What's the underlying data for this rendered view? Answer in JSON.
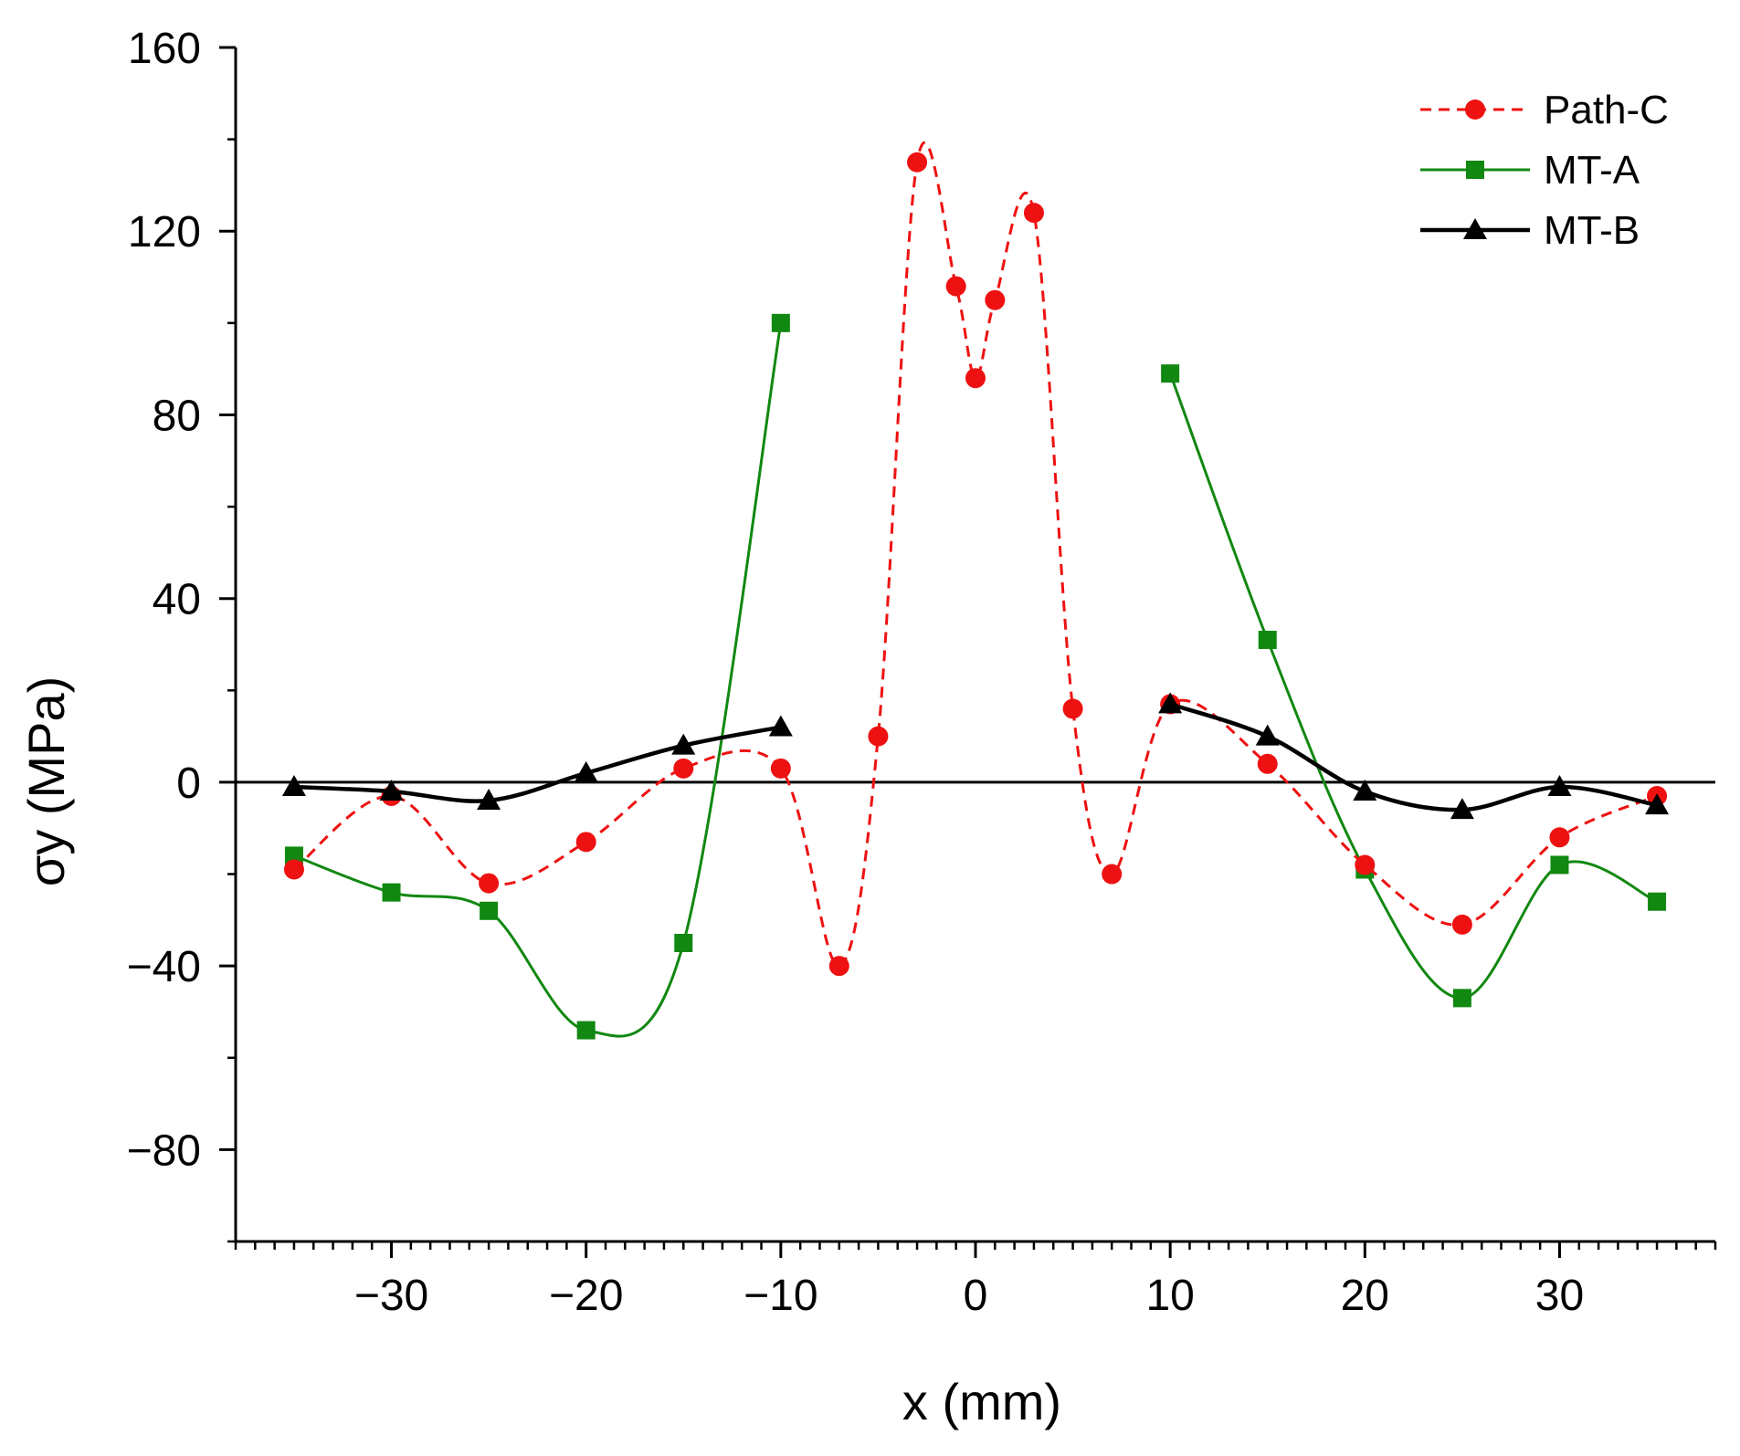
{
  "chart_data": {
    "type": "line",
    "xlabel": "x (mm)",
    "ylabel": "σy (MPa)",
    "xlim": [
      -38,
      38
    ],
    "ylim": [
      -100,
      160
    ],
    "xticks": [
      -30,
      -20,
      -10,
      0,
      10,
      20,
      30
    ],
    "xtick_labels": [
      "−30",
      "−20",
      "−10",
      "0",
      "10",
      "20",
      "30"
    ],
    "yticks": [
      -80,
      -40,
      0,
      40,
      80,
      120,
      160
    ],
    "ytick_labels": [
      "−80",
      "−40",
      "0",
      "40",
      "80",
      "120",
      "160"
    ],
    "x_minor_step": 1,
    "y_minor_step": 20,
    "zero_line": true,
    "grid": false,
    "legend_position": "top-right",
    "series": [
      {
        "name": "Path-C",
        "color": "#ee1111",
        "marker": "circle",
        "line_style": "dashed",
        "segments": [
          [
            [
              -35,
              -19
            ],
            [
              -30,
              -3
            ],
            [
              -25,
              -22
            ],
            [
              -20,
              -13
            ],
            [
              -15,
              3
            ],
            [
              -10,
              3
            ],
            [
              -7,
              -40
            ],
            [
              -5,
              10
            ],
            [
              -3,
              135
            ],
            [
              -1,
              108
            ],
            [
              0,
              88
            ],
            [
              1,
              105
            ],
            [
              3,
              124
            ],
            [
              5,
              16
            ],
            [
              7,
              -20
            ],
            [
              10,
              17
            ],
            [
              15,
              4
            ],
            [
              20,
              -18
            ],
            [
              25,
              -31
            ],
            [
              30,
              -12
            ],
            [
              35,
              -3
            ]
          ]
        ]
      },
      {
        "name": "MT-A",
        "color": "#118811",
        "marker": "square",
        "line_style": "solid",
        "segments": [
          [
            [
              -35,
              -16
            ],
            [
              -30,
              -24
            ],
            [
              -25,
              -28
            ],
            [
              -20,
              -54
            ],
            [
              -15,
              -35
            ],
            [
              -10,
              100
            ]
          ],
          [
            [
              10,
              89
            ],
            [
              15,
              31
            ],
            [
              20,
              -19
            ],
            [
              25,
              -47
            ],
            [
              30,
              -18
            ],
            [
              35,
              -26
            ]
          ]
        ]
      },
      {
        "name": "MT-B",
        "color": "#000000",
        "marker": "triangle",
        "line_style": "solid",
        "segments": [
          [
            [
              -35,
              -1
            ],
            [
              -30,
              -2
            ],
            [
              -25,
              -4
            ],
            [
              -20,
              2
            ],
            [
              -15,
              8
            ],
            [
              -10,
              12
            ]
          ],
          [
            [
              10,
              17
            ],
            [
              15,
              10
            ],
            [
              20,
              -2
            ],
            [
              25,
              -6
            ],
            [
              30,
              -1
            ],
            [
              35,
              -5
            ]
          ]
        ]
      }
    ]
  }
}
